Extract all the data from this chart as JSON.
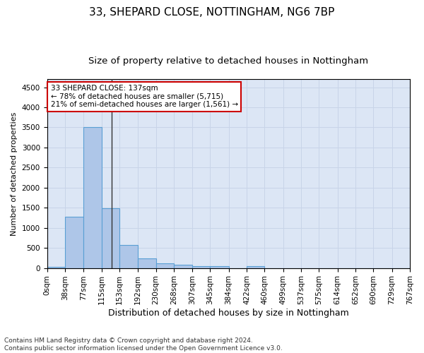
{
  "title1": "33, SHEPARD CLOSE, NOTTINGHAM, NG6 7BP",
  "title2": "Size of property relative to detached houses in Nottingham",
  "xlabel": "Distribution of detached houses by size in Nottingham",
  "ylabel": "Number of detached properties",
  "bar_values": [
    30,
    1280,
    3500,
    1480,
    580,
    240,
    115,
    85,
    50,
    50,
    0,
    50,
    0,
    0,
    0,
    0,
    0,
    0,
    0,
    0
  ],
  "bin_edges": [
    0,
    38,
    77,
    115,
    153,
    192,
    230,
    268,
    307,
    345,
    384,
    422,
    460,
    499,
    537,
    575,
    614,
    652,
    690,
    729,
    767
  ],
  "bin_labels": [
    "0sqm",
    "38sqm",
    "77sqm",
    "115sqm",
    "153sqm",
    "192sqm",
    "230sqm",
    "268sqm",
    "307sqm",
    "345sqm",
    "384sqm",
    "422sqm",
    "460sqm",
    "499sqm",
    "537sqm",
    "575sqm",
    "614sqm",
    "652sqm",
    "690sqm",
    "729sqm",
    "767sqm"
  ],
  "bar_color": "#aec6e8",
  "bar_edge_color": "#5a9fd4",
  "property_size": 137,
  "vline_color": "#333333",
  "annotation_line1": "33 SHEPARD CLOSE: 137sqm",
  "annotation_line2": "← 78% of detached houses are smaller (5,715)",
  "annotation_line3": "21% of semi-detached houses are larger (1,561) →",
  "annotation_box_color": "#ffffff",
  "annotation_box_edge_color": "#cc0000",
  "ylim": [
    0,
    4700
  ],
  "yticks": [
    0,
    500,
    1000,
    1500,
    2000,
    2500,
    3000,
    3500,
    4000,
    4500
  ],
  "grid_color": "#c8d4e8",
  "bg_color": "#dce6f5",
  "footer_line1": "Contains HM Land Registry data © Crown copyright and database right 2024.",
  "footer_line2": "Contains public sector information licensed under the Open Government Licence v3.0.",
  "title1_fontsize": 11,
  "title2_fontsize": 9.5,
  "xlabel_fontsize": 9,
  "ylabel_fontsize": 8,
  "tick_fontsize": 7.5,
  "annot_fontsize": 7.5,
  "footer_fontsize": 6.5
}
